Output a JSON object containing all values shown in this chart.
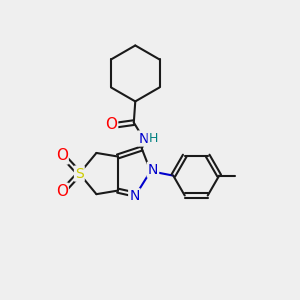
{
  "bg_color": "#efefef",
  "line_color": "#1a1a1a",
  "bond_width": 1.5,
  "atom_colors": {
    "O": "#ff0000",
    "N": "#0000cc",
    "S": "#cccc00",
    "H": "#008080",
    "C": "#1a1a1a"
  },
  "font_size": 9,
  "fig_width": 3.0,
  "fig_height": 3.0,
  "dpi": 100
}
